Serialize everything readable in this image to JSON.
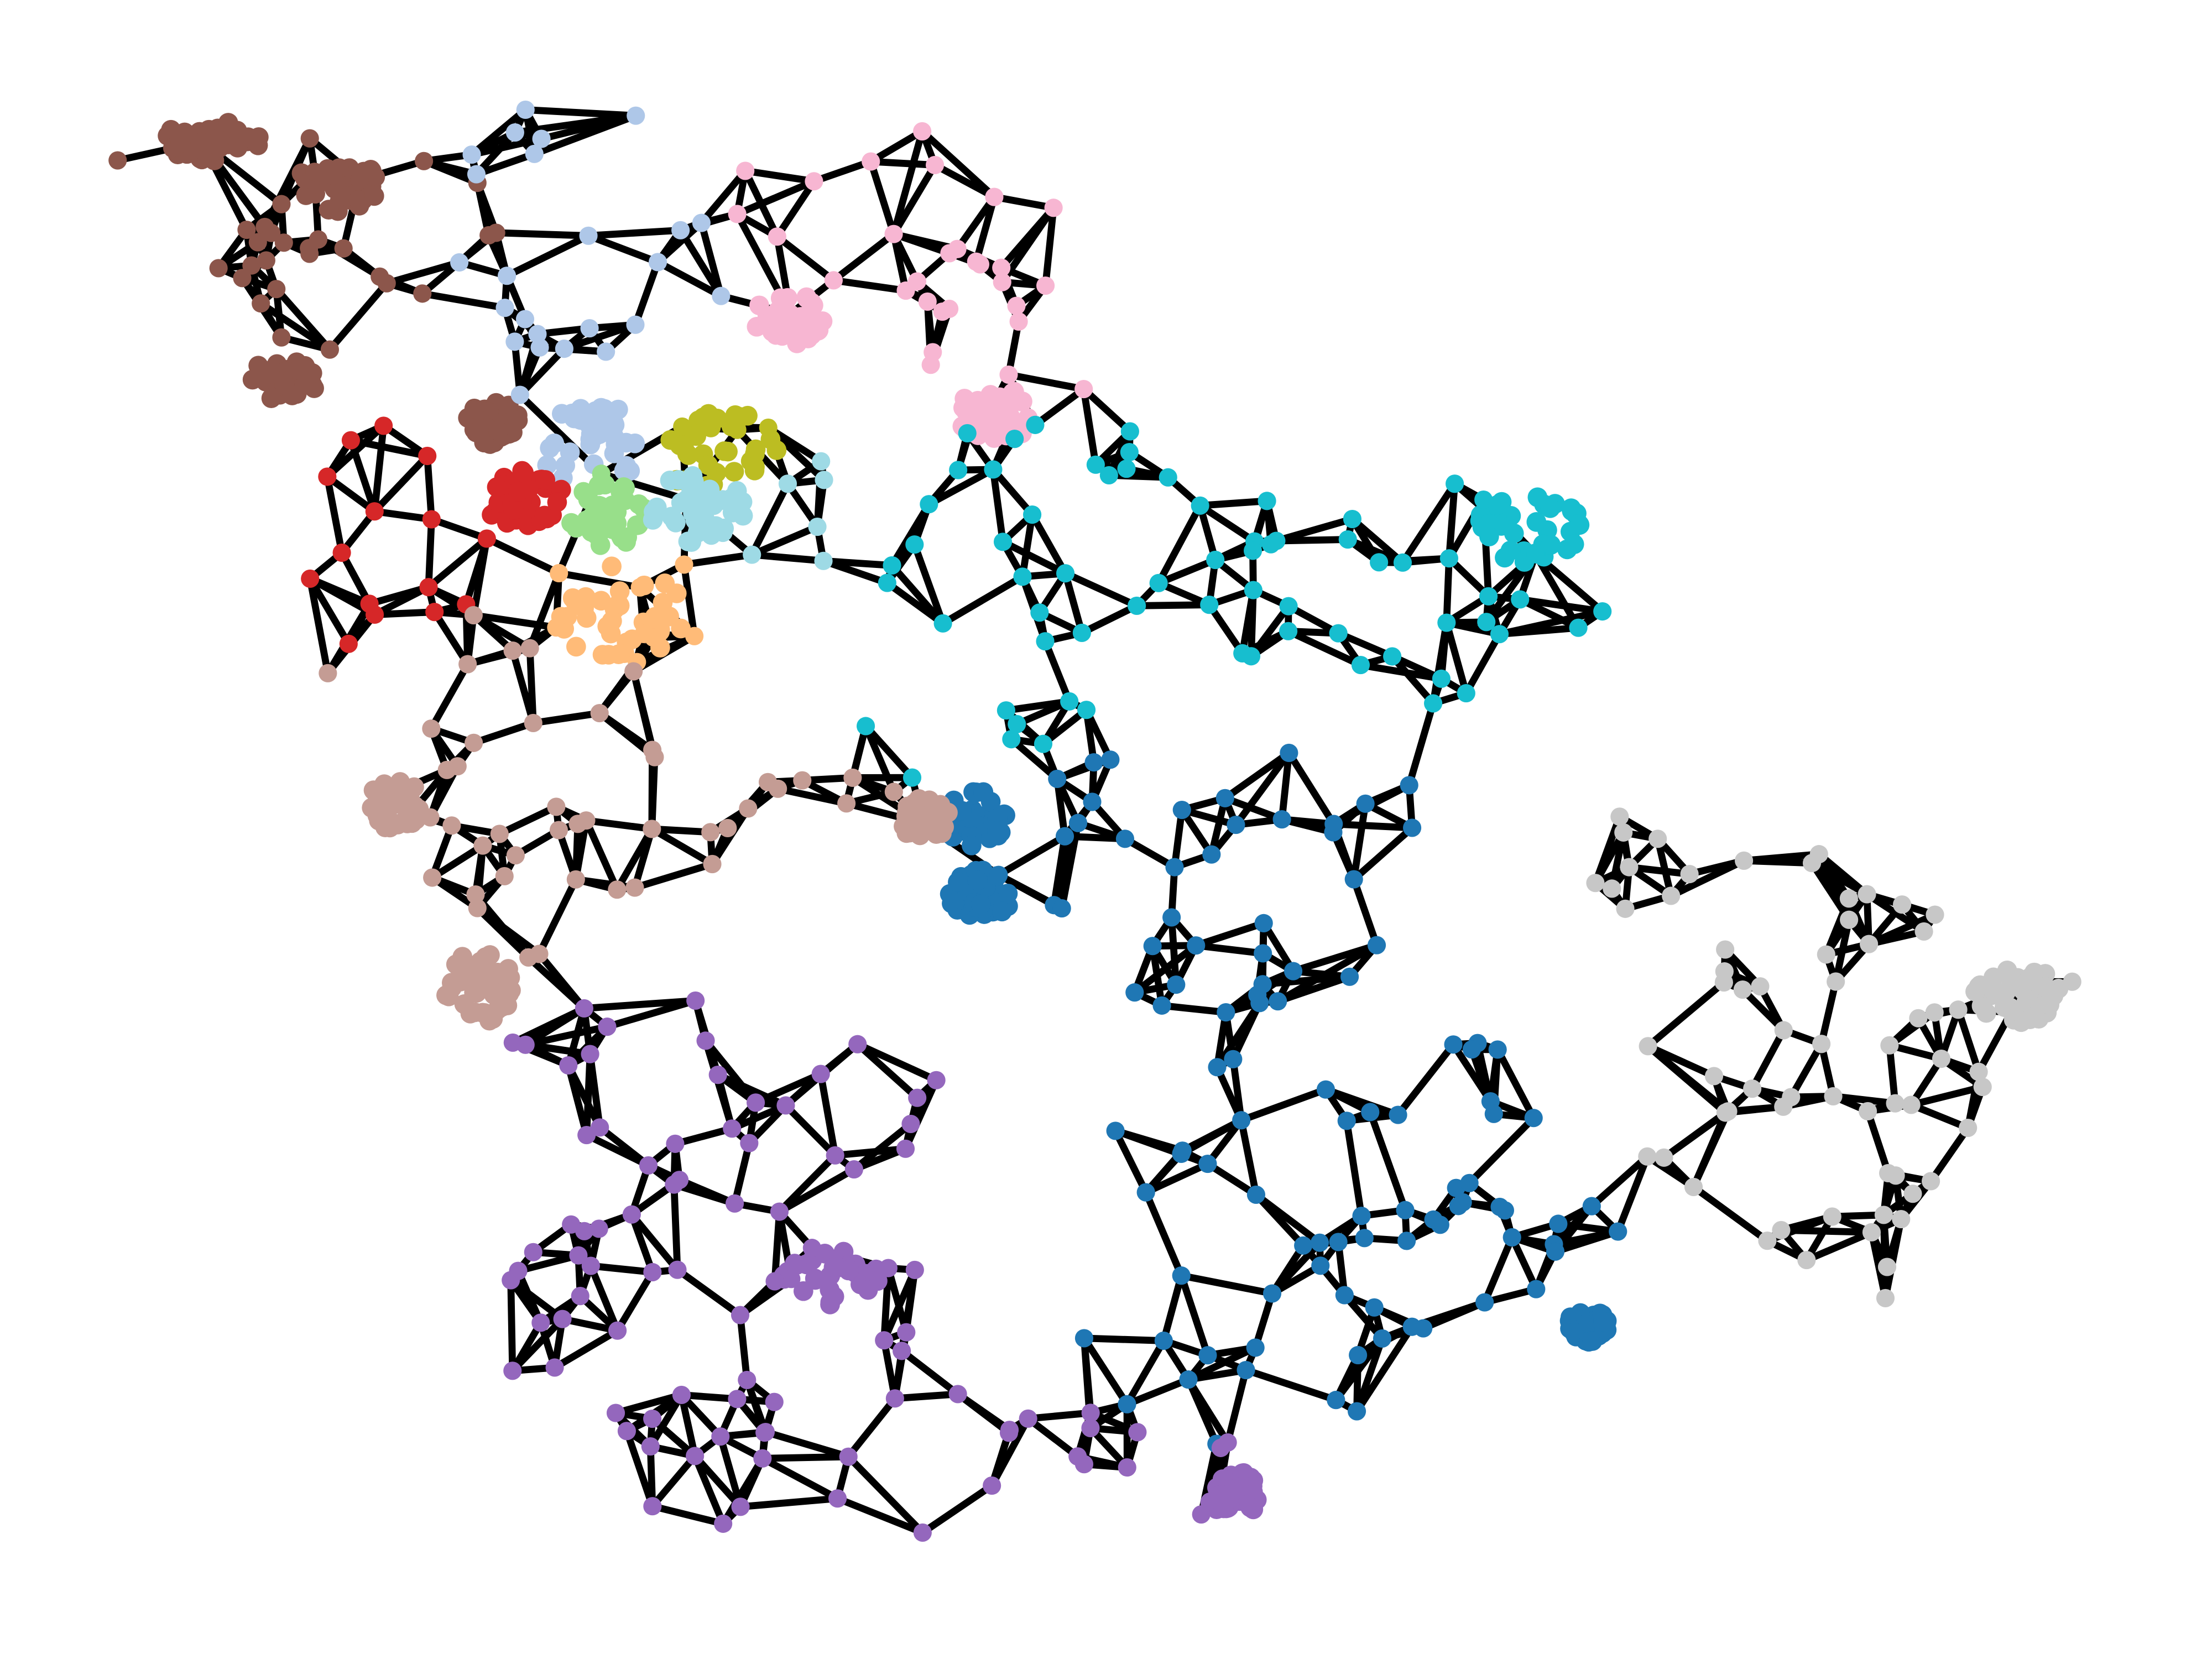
{
  "map": {
    "type": "graph-partition",
    "description_visible_text": "",
    "districts": [
      {
        "id": "brown",
        "color": "#8c564b"
      },
      {
        "id": "light-blue",
        "color": "#aec7e8"
      },
      {
        "id": "pink",
        "color": "#f7b6d2"
      },
      {
        "id": "olive",
        "color": "#bcbd22"
      },
      {
        "id": "red",
        "color": "#d62728"
      },
      {
        "id": "light-green",
        "color": "#98df8a"
      },
      {
        "id": "powder-blue",
        "color": "#9edae5"
      },
      {
        "id": "light-orange",
        "color": "#ffbb78"
      },
      {
        "id": "cyan",
        "color": "#17becf"
      },
      {
        "id": "tan",
        "color": "#c49c94"
      },
      {
        "id": "blue",
        "color": "#1f77b4"
      },
      {
        "id": "gray",
        "color": "#c7c7c7"
      },
      {
        "id": "purple",
        "color": "#9467bd"
      }
    ],
    "edge_color": "#000000",
    "background": "#ffffff"
  }
}
